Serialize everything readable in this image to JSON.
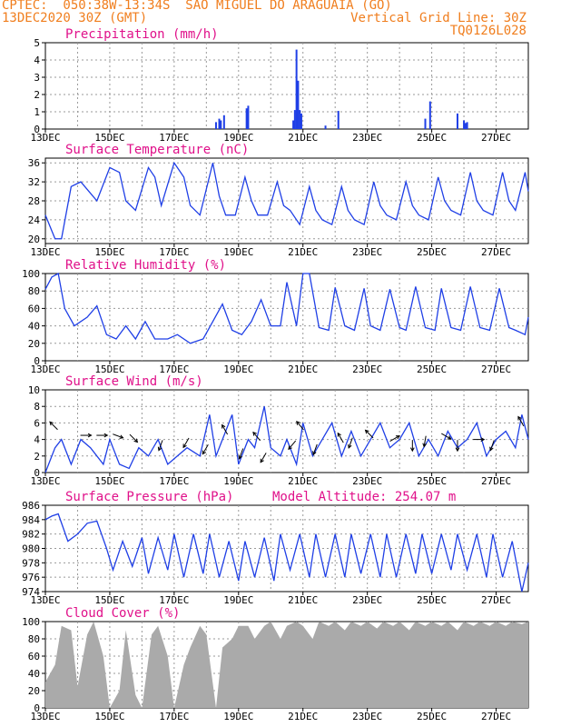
{
  "header": {
    "line1": "CPTEC:  050:38W-13:34S  SAO MIGUEL DO ARAGUAIA (GO)",
    "line2_left": "13DEC2020 30Z (GMT)",
    "line2_right": "Vertical Grid Line: 30Z",
    "line3_right": "TQ0126L028"
  },
  "x_tick_labels": [
    "13DEC",
    "15DEC",
    "17DEC",
    "19DEC",
    "21DEC",
    "23DEC",
    "25DEC",
    "27DEC"
  ],
  "colors": {
    "header": "#f07e1e",
    "title": "#e0118a",
    "series": "#1f3fe6",
    "cloud": "#aaaaaa"
  },
  "chart_data": [
    {
      "type": "bar",
      "title": "Precipitation (mm/h)",
      "ylim": [
        0,
        5
      ],
      "yticks": [
        0,
        1,
        2,
        3,
        4,
        5
      ],
      "bars": [
        {
          "day": 18.3,
          "value": 0.4
        },
        {
          "day": 18.4,
          "value": 0.6
        },
        {
          "day": 18.45,
          "value": 0.5
        },
        {
          "day": 18.55,
          "value": 0.8
        },
        {
          "day": 19.25,
          "value": 1.2
        },
        {
          "day": 19.3,
          "value": 1.35
        },
        {
          "day": 20.7,
          "value": 0.5
        },
        {
          "day": 20.75,
          "value": 1.1
        },
        {
          "day": 20.8,
          "value": 4.6
        },
        {
          "day": 20.85,
          "value": 2.8
        },
        {
          "day": 20.9,
          "value": 1.1
        },
        {
          "day": 20.95,
          "value": 0.9
        },
        {
          "day": 21.7,
          "value": 0.2
        },
        {
          "day": 22.1,
          "value": 1.05
        },
        {
          "day": 24.8,
          "value": 0.6
        },
        {
          "day": 24.95,
          "value": 1.6
        },
        {
          "day": 25.8,
          "value": 0.9
        },
        {
          "day": 26.0,
          "value": 0.5
        },
        {
          "day": 26.05,
          "value": 0.35
        },
        {
          "day": 26.1,
          "value": 0.4
        }
      ]
    },
    {
      "type": "line",
      "title": "Surface Temperature (nC)",
      "ylim": [
        19,
        37
      ],
      "yticks": [
        20,
        24,
        28,
        32,
        36
      ],
      "x": [
        13.0,
        13.3,
        13.5,
        13.8,
        14.1,
        14.35,
        14.6,
        15.0,
        15.3,
        15.5,
        15.8,
        16.2,
        16.4,
        16.6,
        17.0,
        17.3,
        17.5,
        17.8,
        18.2,
        18.4,
        18.6,
        18.9,
        19.2,
        19.4,
        19.6,
        19.9,
        20.2,
        20.4,
        20.6,
        20.9,
        21.2,
        21.4,
        21.6,
        21.9,
        22.2,
        22.4,
        22.6,
        22.9,
        23.2,
        23.4,
        23.6,
        23.9,
        24.2,
        24.4,
        24.6,
        24.9,
        25.2,
        25.4,
        25.6,
        25.9,
        26.2,
        26.4,
        26.6,
        26.9,
        27.2,
        27.4,
        27.6,
        27.9,
        28.0
      ],
      "values": [
        25,
        20,
        20,
        31,
        32,
        30,
        28,
        35,
        34,
        28,
        26,
        35,
        33,
        27,
        36,
        33,
        27,
        25,
        36,
        29,
        25,
        25,
        33,
        28,
        25,
        25,
        32,
        27,
        26,
        23,
        31,
        26,
        24,
        23,
        31,
        26,
        24,
        23,
        32,
        27,
        25,
        24,
        32,
        27,
        25,
        24,
        33,
        28,
        26,
        25,
        34,
        28,
        26,
        25,
        34,
        28,
        26,
        34,
        30
      ]
    },
    {
      "type": "line",
      "title": "Relative Humidity (%)",
      "ylim": [
        0,
        100
      ],
      "yticks": [
        0,
        20,
        40,
        60,
        80,
        100
      ],
      "x": [
        13.0,
        13.2,
        13.4,
        13.6,
        13.9,
        14.3,
        14.6,
        14.9,
        15.2,
        15.5,
        15.8,
        16.1,
        16.4,
        16.8,
        17.1,
        17.5,
        17.9,
        18.2,
        18.5,
        18.8,
        19.1,
        19.4,
        19.7,
        20.0,
        20.3,
        20.5,
        20.8,
        21.0,
        21.2,
        21.5,
        21.8,
        22.0,
        22.3,
        22.6,
        22.9,
        23.1,
        23.4,
        23.7,
        24.0,
        24.2,
        24.5,
        24.8,
        25.1,
        25.3,
        25.6,
        25.9,
        26.2,
        26.5,
        26.8,
        27.1,
        27.4,
        27.6,
        27.9,
        28.0
      ],
      "values": [
        82,
        96,
        100,
        60,
        40,
        50,
        63,
        30,
        25,
        40,
        25,
        45,
        25,
        25,
        30,
        20,
        25,
        45,
        65,
        35,
        30,
        45,
        70,
        40,
        40,
        90,
        40,
        100,
        100,
        38,
        35,
        84,
        40,
        35,
        83,
        40,
        35,
        82,
        38,
        35,
        85,
        38,
        35,
        83,
        38,
        35,
        85,
        38,
        35,
        83,
        38,
        35,
        30,
        50
      ]
    },
    {
      "type": "line",
      "title": "Surface Wind (m/s)",
      "ylim": [
        0,
        10
      ],
      "yticks": [
        0,
        2,
        4,
        6,
        8,
        10
      ],
      "x": [
        13.0,
        13.3,
        13.5,
        13.8,
        14.1,
        14.4,
        14.8,
        15.0,
        15.3,
        15.6,
        15.9,
        16.2,
        16.5,
        16.8,
        17.1,
        17.4,
        17.8,
        18.1,
        18.3,
        18.5,
        18.8,
        19.0,
        19.3,
        19.5,
        19.8,
        20.0,
        20.3,
        20.5,
        20.8,
        21.0,
        21.3,
        21.6,
        21.9,
        22.2,
        22.5,
        22.8,
        23.1,
        23.4,
        23.7,
        24.0,
        24.3,
        24.6,
        24.9,
        25.2,
        25.5,
        25.8,
        26.1,
        26.4,
        26.7,
        27.0,
        27.3,
        27.6,
        27.8,
        28.0
      ],
      "values": [
        0,
        3,
        4,
        1,
        4,
        3,
        1,
        4,
        1,
        0.5,
        3,
        2,
        4,
        1,
        2,
        3,
        2,
        7,
        2,
        4,
        7,
        1,
        4,
        3,
        8,
        3,
        2,
        4,
        1,
        6,
        2,
        4,
        6,
        2,
        5,
        2,
        4,
        6,
        3,
        4,
        6,
        2,
        4,
        2,
        5,
        3,
        4,
        6,
        2,
        4,
        5,
        3,
        7,
        4
      ],
      "arrows": [
        {
          "day": 13.3,
          "value": 5.5,
          "dir": 315
        },
        {
          "day": 14.2,
          "value": 4.5,
          "dir": 90
        },
        {
          "day": 14.7,
          "value": 4.5,
          "dir": 90
        },
        {
          "day": 15.2,
          "value": 4.5,
          "dir": 110
        },
        {
          "day": 15.7,
          "value": 4.3,
          "dir": 135
        },
        {
          "day": 16.6,
          "value": 3.5,
          "dir": 200
        },
        {
          "day": 17.4,
          "value": 3.8,
          "dir": 210
        },
        {
          "day": 18.0,
          "value": 3.0,
          "dir": 210
        },
        {
          "day": 18.6,
          "value": 5.0,
          "dir": 330
        },
        {
          "day": 19.1,
          "value": 2.5,
          "dir": 200
        },
        {
          "day": 19.6,
          "value": 4.2,
          "dir": 320
        },
        {
          "day": 19.8,
          "value": 2.0,
          "dir": 210
        },
        {
          "day": 20.7,
          "value": 3.5,
          "dir": 220
        },
        {
          "day": 20.95,
          "value": 5.5,
          "dir": 320
        },
        {
          "day": 21.4,
          "value": 3.0,
          "dir": 200
        },
        {
          "day": 22.2,
          "value": 4.0,
          "dir": 330
        },
        {
          "day": 22.5,
          "value": 3.8,
          "dir": 200
        },
        {
          "day": 23.1,
          "value": 4.5,
          "dir": 315
        },
        {
          "day": 23.8,
          "value": 4.0,
          "dir": 60
        },
        {
          "day": 24.4,
          "value": 3.5,
          "dir": 180
        },
        {
          "day": 24.8,
          "value": 4.0,
          "dir": 190
        },
        {
          "day": 25.4,
          "value": 4.5,
          "dir": 120
        },
        {
          "day": 25.8,
          "value": 3.5,
          "dir": 180
        },
        {
          "day": 26.4,
          "value": 4.0,
          "dir": 90
        },
        {
          "day": 26.9,
          "value": 3.5,
          "dir": 200
        },
        {
          "day": 27.8,
          "value": 6.0,
          "dir": 330
        }
      ]
    },
    {
      "type": "line",
      "title": "Surface Pressure (hPa)",
      "annotation": "Model Altitude: 254.07 m",
      "ylim": [
        974,
        986
      ],
      "yticks": [
        974,
        976,
        978,
        980,
        982,
        984,
        986
      ],
      "x": [
        13.0,
        13.2,
        13.4,
        13.7,
        14.0,
        14.3,
        14.6,
        14.9,
        15.1,
        15.4,
        15.7,
        16.0,
        16.2,
        16.5,
        16.8,
        17.0,
        17.3,
        17.6,
        17.9,
        18.1,
        18.4,
        18.7,
        19.0,
        19.2,
        19.5,
        19.8,
        20.1,
        20.3,
        20.6,
        20.9,
        21.2,
        21.4,
        21.7,
        22.0,
        22.3,
        22.5,
        22.8,
        23.1,
        23.4,
        23.6,
        23.9,
        24.2,
        24.5,
        24.7,
        25.0,
        25.3,
        25.6,
        25.8,
        26.1,
        26.4,
        26.7,
        26.9,
        27.2,
        27.5,
        27.8,
        28.0
      ],
      "values": [
        984,
        984.5,
        984.8,
        981,
        982,
        983.5,
        983.8,
        980,
        977,
        981,
        977.5,
        981.5,
        976.5,
        981.5,
        977,
        982,
        976,
        982,
        976.5,
        982,
        976,
        981,
        975.5,
        981,
        976,
        981.5,
        975.5,
        982,
        977,
        982,
        976,
        982,
        976,
        982,
        976,
        982,
        976.5,
        982,
        976,
        982,
        976,
        982,
        976.5,
        982,
        976.5,
        982,
        977,
        982,
        977,
        982,
        976,
        982,
        976,
        981,
        974,
        978
      ]
    },
    {
      "type": "area",
      "title": "Cloud Cover (%)",
      "ylim": [
        0,
        100
      ],
      "yticks": [
        0,
        20,
        40,
        60,
        80,
        100
      ],
      "x": [
        13.0,
        13.3,
        13.5,
        13.8,
        14.0,
        14.3,
        14.5,
        14.8,
        15.0,
        15.3,
        15.5,
        15.8,
        16.0,
        16.3,
        16.5,
        16.8,
        17.0,
        17.3,
        17.5,
        17.8,
        18.0,
        18.3,
        18.5,
        18.8,
        19.0,
        19.3,
        19.5,
        19.8,
        20.0,
        20.3,
        20.5,
        20.8,
        21.0,
        21.3,
        21.5,
        21.8,
        22.0,
        22.3,
        22.5,
        22.8,
        23.0,
        23.3,
        23.5,
        23.8,
        24.0,
        24.3,
        24.5,
        24.8,
        25.0,
        25.3,
        25.5,
        25.8,
        26.0,
        26.3,
        26.5,
        26.8,
        27.0,
        27.3,
        27.5,
        27.8,
        28.0
      ],
      "values": [
        30,
        50,
        95,
        90,
        25,
        85,
        100,
        60,
        0,
        20,
        90,
        15,
        0,
        85,
        95,
        60,
        0,
        50,
        70,
        95,
        85,
        0,
        70,
        80,
        95,
        95,
        80,
        95,
        100,
        80,
        95,
        100,
        95,
        80,
        100,
        95,
        100,
        90,
        100,
        95,
        100,
        92,
        100,
        95,
        100,
        90,
        100,
        95,
        100,
        95,
        100,
        90,
        100,
        95,
        100,
        95,
        100,
        95,
        100,
        97,
        100
      ]
    }
  ]
}
